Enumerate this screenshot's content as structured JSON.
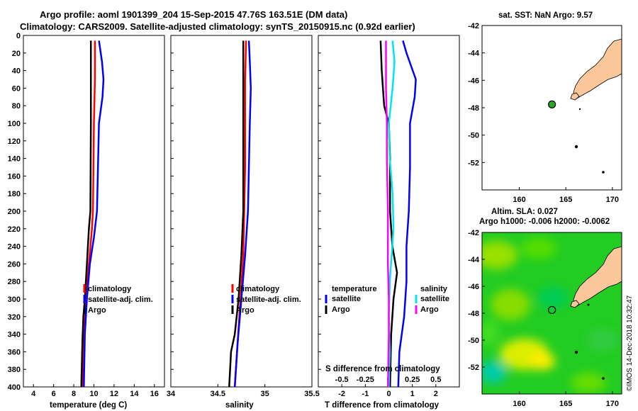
{
  "header": {
    "title_line1": "Argo profile: aoml 1901399_204 15-Sep-2015 47.76S 163.51E (DM data)",
    "title_line2": "Climatology: CARS2009. Satellite-adjusted climatology: synTS_20150915.nc (0.92d earlier)"
  },
  "colors": {
    "climatology": "#ff0000",
    "satellite": "#0000ff",
    "argo": "#000000",
    "t_satellite": "#0000ff",
    "s_satellite": "#00e5ee",
    "s_argo": "#ff00ff",
    "land": "#fcc89b",
    "ocean_green": "#22cc22"
  },
  "chart_data": [
    {
      "type": "line",
      "name": "temperature-profile",
      "xlabel": "temperature (deg C)",
      "xlim": [
        3,
        17
      ],
      "ylim": [
        400,
        0
      ],
      "xticks": [
        "4",
        "6",
        "8",
        "10",
        "12",
        "14",
        "16"
      ],
      "yticks": [
        "0",
        "20",
        "40",
        "60",
        "80",
        "100",
        "120",
        "140",
        "160",
        "180",
        "200",
        "220",
        "240",
        "260",
        "280",
        "300",
        "320",
        "340",
        "360",
        "380",
        "400"
      ],
      "legend": [
        "climatology",
        "satellite-adj. clim.",
        "Argo"
      ],
      "series": [
        {
          "name": "climatology",
          "color": "#ff0000",
          "depth": [
            6,
            50,
            100,
            150,
            200,
            220,
            260,
            300,
            340,
            400
          ],
          "values": [
            10.1,
            10.1,
            10.0,
            9.95,
            9.9,
            9.8,
            9.5,
            9.2,
            9.0,
            8.9
          ]
        },
        {
          "name": "satellite-adj. clim.",
          "color": "#0000ff",
          "depth": [
            6,
            30,
            50,
            70,
            100,
            150,
            200,
            230,
            260,
            300,
            340,
            400
          ],
          "values": [
            10.5,
            10.8,
            10.95,
            10.85,
            10.5,
            10.4,
            10.3,
            10.0,
            9.6,
            9.3,
            9.1,
            9.0
          ]
        },
        {
          "name": "Argo",
          "color": "#000000",
          "depth": [
            6,
            100,
            200,
            220,
            260,
            300,
            320,
            350,
            400
          ],
          "values": [
            9.7,
            9.7,
            9.65,
            9.5,
            9.3,
            9.1,
            8.95,
            8.85,
            8.75
          ]
        }
      ]
    },
    {
      "type": "line",
      "name": "salinity-profile",
      "xlabel": "salinity",
      "xlim": [
        34,
        35.5
      ],
      "ylim": [
        400,
        0
      ],
      "xticks": [
        "34",
        "34.5",
        "35",
        "35.5"
      ],
      "legend": [
        "climatology",
        "satellite-adj. clim.",
        "Argo"
      ],
      "series": [
        {
          "name": "climatology",
          "color": "#ff0000",
          "depth": [
            6,
            50,
            100,
            150,
            200,
            250,
            300,
            350,
            400
          ],
          "values": [
            34.8,
            34.79,
            34.79,
            34.79,
            34.78,
            34.77,
            34.74,
            34.71,
            34.68
          ]
        },
        {
          "name": "satellite-adj. clim.",
          "color": "#0000ff",
          "depth": [
            6,
            30,
            60,
            100,
            150,
            200,
            250,
            300,
            350,
            400
          ],
          "values": [
            34.83,
            34.84,
            34.85,
            34.84,
            34.83,
            34.82,
            34.79,
            34.75,
            34.71,
            34.68
          ]
        },
        {
          "name": "Argo",
          "color": "#000000",
          "depth": [
            6,
            100,
            200,
            250,
            300,
            340,
            360,
            400
          ],
          "values": [
            34.77,
            34.77,
            34.77,
            34.75,
            34.72,
            34.68,
            34.64,
            34.62
          ]
        }
      ]
    },
    {
      "type": "line",
      "name": "difference-profile",
      "xlabel": "T difference from climatology",
      "xlabel_top": "S difference from climatology",
      "xlim": [
        -3,
        3
      ],
      "ylim": [
        400,
        0
      ],
      "xticks": [
        "-2",
        "-1",
        "0",
        "1",
        "2"
      ],
      "top_ticks": [
        "-0.5",
        "-0.25",
        "0",
        "0.25",
        "0.5"
      ],
      "legend_temperature_title": "temperature",
      "legend_salinity_title": "salinity",
      "legend_entries": [
        "satellite",
        "Argo"
      ],
      "series": [
        {
          "name": "T satellite",
          "color": "#0000ff",
          "depth": [
            6,
            20,
            50,
            70,
            100,
            150,
            200,
            240,
            280,
            320,
            360,
            400
          ],
          "values": [
            0.6,
            0.75,
            1.15,
            1.1,
            0.9,
            0.9,
            0.85,
            0.75,
            0.75,
            0.65,
            0.45,
            0.4
          ]
        },
        {
          "name": "T Argo",
          "color": "#000000",
          "depth": [
            6,
            40,
            80,
            100,
            140,
            200,
            240,
            270,
            300,
            340,
            400
          ],
          "values": [
            -0.35,
            -0.3,
            -0.2,
            0.0,
            0.05,
            0.05,
            0.15,
            0.35,
            0.2,
            0.1,
            0.05
          ]
        },
        {
          "name": "S satellite",
          "color": "#00e5ee",
          "depth": [
            6,
            30,
            60,
            100,
            140,
            180,
            220,
            250,
            280,
            320,
            360,
            400
          ],
          "values": [
            0.04,
            0.06,
            0.04,
            0.0,
            0.01,
            0.04,
            0.05,
            0.03,
            0.01,
            0.0,
            0.01,
            0.0
          ]
        },
        {
          "name": "S Argo",
          "color": "#ff00ff",
          "depth": [
            6,
            60,
            100,
            140,
            200,
            260,
            300,
            340,
            400
          ],
          "values": [
            -0.03,
            -0.03,
            -0.02,
            -0.02,
            -0.01,
            -0.01,
            0.0,
            0.0,
            -0.01
          ]
        }
      ]
    },
    {
      "type": "scatter",
      "name": "sst-map",
      "title": "sat. SST: NaN Argo: 9.57",
      "xlim": [
        156,
        171
      ],
      "ylim": [
        -54,
        -42
      ],
      "xticks": [
        "160",
        "165",
        "170"
      ],
      "yticks": [
        "-42",
        "-44",
        "-46",
        "-48",
        "-50",
        "-52"
      ],
      "argo_position": {
        "lon": 163.51,
        "lat": -47.76
      }
    },
    {
      "type": "heatmap",
      "name": "sla-map",
      "title_line1": "Altim. SLA: 0.027",
      "title_line2": "Argo h1000: -0.006 h2000: -0.0062",
      "xlim": [
        156,
        171
      ],
      "ylim": [
        -54,
        -42
      ],
      "xticks": [
        "160",
        "165",
        "170"
      ],
      "yticks": [
        "-42",
        "-44",
        "-46",
        "-48",
        "-50",
        "-52"
      ],
      "argo_position": {
        "lon": 163.51,
        "lat": -47.76
      }
    }
  ],
  "footer": {
    "credit": "©IMOS 14-Dec-2018 10:32:47"
  }
}
